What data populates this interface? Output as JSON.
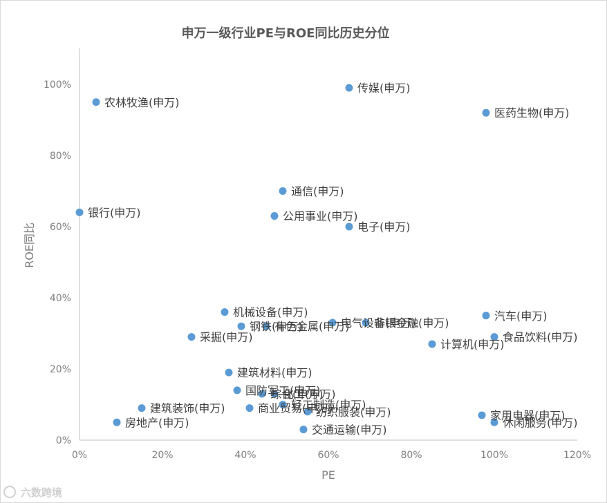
{
  "chart_data": {
    "type": "scatter",
    "title": "申万一级行业PE与ROE同比历史分位",
    "xlabel": "PE",
    "ylabel": "ROE同比",
    "xlim": [
      0,
      1.2
    ],
    "ylim": [
      0,
      1.0
    ],
    "x_ticks": [
      0,
      0.2,
      0.4,
      0.6,
      0.8,
      1.0,
      1.2
    ],
    "x_tick_labels": [
      "0%",
      "20%",
      "40%",
      "60%",
      "80%",
      "100%",
      "120%"
    ],
    "y_ticks": [
      0,
      0.2,
      0.4,
      0.6,
      0.8,
      1.0
    ],
    "y_tick_labels": [
      "0%",
      "20%",
      "40%",
      "60%",
      "80%",
      "100%"
    ],
    "grid": false,
    "marker_color": "#5b9bd5",
    "points": [
      {
        "label": "农林牧渔(申万)",
        "x": 0.04,
        "y": 0.95
      },
      {
        "label": "传媒(申万)",
        "x": 0.65,
        "y": 0.99
      },
      {
        "label": "医药生物(申万)",
        "x": 0.98,
        "y": 0.92
      },
      {
        "label": "通信(申万)",
        "x": 0.49,
        "y": 0.7
      },
      {
        "label": "银行(申万)",
        "x": 0.0,
        "y": 0.64
      },
      {
        "label": "公用事业(申万)",
        "x": 0.47,
        "y": 0.63
      },
      {
        "label": "电子(申万)",
        "x": 0.65,
        "y": 0.6
      },
      {
        "label": "机械设备(申万)",
        "x": 0.35,
        "y": 0.36
      },
      {
        "label": "钢铁(申万)",
        "x": 0.39,
        "y": 0.32
      },
      {
        "label": "有色金属(申万)",
        "x": 0.45,
        "y": 0.32
      },
      {
        "label": "电气设备(申万)",
        "x": 0.61,
        "y": 0.33
      },
      {
        "label": "非银金融(申万)",
        "x": 0.69,
        "y": 0.33
      },
      {
        "label": "汽车(申万)",
        "x": 0.98,
        "y": 0.35
      },
      {
        "label": "食品饮料(申万)",
        "x": 1.0,
        "y": 0.29
      },
      {
        "label": "采掘(申万)",
        "x": 0.27,
        "y": 0.29
      },
      {
        "label": "计算机(申万)",
        "x": 0.85,
        "y": 0.27
      },
      {
        "label": "建筑材料(申万)",
        "x": 0.36,
        "y": 0.19
      },
      {
        "label": "国防军工(申万)",
        "x": 0.38,
        "y": 0.14
      },
      {
        "label": "综合(申万)",
        "x": 0.44,
        "y": 0.13
      },
      {
        "label": "化工(申万)",
        "x": 0.47,
        "y": 0.13
      },
      {
        "label": "轻工制造(申万)",
        "x": 0.49,
        "y": 0.1
      },
      {
        "label": "建筑装饰(申万)",
        "x": 0.15,
        "y": 0.09
      },
      {
        "label": "商业贸易(申万)",
        "x": 0.41,
        "y": 0.09
      },
      {
        "label": "纺织服装(申万)",
        "x": 0.55,
        "y": 0.08
      },
      {
        "label": "房地产(申万)",
        "x": 0.09,
        "y": 0.05
      },
      {
        "label": "交通运输(申万)",
        "x": 0.54,
        "y": 0.03
      },
      {
        "label": "家用电器(申万)",
        "x": 0.97,
        "y": 0.07
      },
      {
        "label": "休闲服务(申万)",
        "x": 1.0,
        "y": 0.05
      }
    ]
  },
  "watermark": "六数跨境"
}
